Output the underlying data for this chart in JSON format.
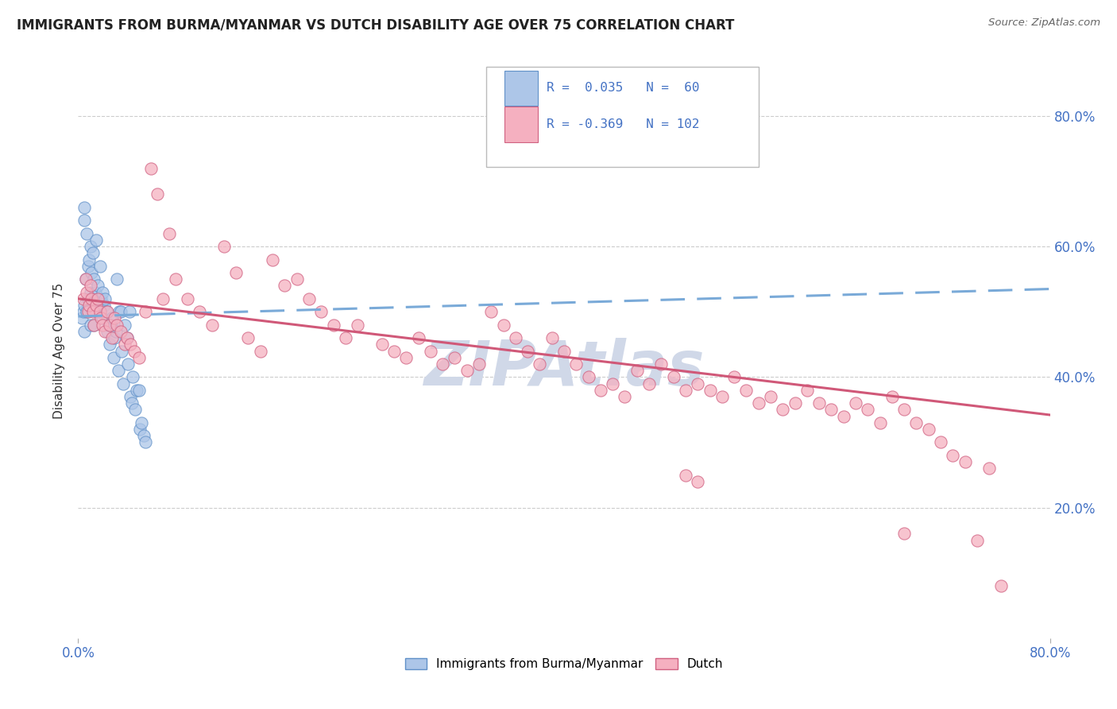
{
  "title": "IMMIGRANTS FROM BURMA/MYANMAR VS DUTCH DISABILITY AGE OVER 75 CORRELATION CHART",
  "source_text": "Source: ZipAtlas.com",
  "ylabel": "Disability Age Over 75",
  "legend_label_blue": "Immigrants from Burma/Myanmar",
  "legend_label_pink": "Dutch",
  "color_blue": "#adc6e8",
  "color_pink": "#f5b0c0",
  "color_blue_edge": "#6090c8",
  "color_pink_edge": "#d06080",
  "trend_blue_color": "#7aaad8",
  "trend_pink_color": "#d05878",
  "watermark": "ZIPAtlas",
  "watermark_color": "#d0d8e8",
  "xlim": [
    0.0,
    0.8
  ],
  "ylim": [
    0.0,
    0.88
  ],
  "yticks": [
    0.2,
    0.4,
    0.6,
    0.8
  ],
  "xticks": [
    0.0,
    0.8
  ],
  "blue_trend_x0": 0.0,
  "blue_trend_y0": 0.493,
  "blue_trend_x1": 0.8,
  "blue_trend_y1": 0.535,
  "pink_trend_x0": 0.0,
  "pink_trend_y0": 0.52,
  "pink_trend_x1": 0.8,
  "pink_trend_y1": 0.342,
  "blue_scatter_x": [
    0.003,
    0.004,
    0.005,
    0.005,
    0.005,
    0.005,
    0.006,
    0.007,
    0.007,
    0.008,
    0.008,
    0.009,
    0.01,
    0.01,
    0.01,
    0.011,
    0.012,
    0.012,
    0.013,
    0.013,
    0.014,
    0.015,
    0.015,
    0.016,
    0.017,
    0.018,
    0.019,
    0.02,
    0.02,
    0.021,
    0.022,
    0.023,
    0.024,
    0.025,
    0.026,
    0.027,
    0.028,
    0.029,
    0.03,
    0.031,
    0.032,
    0.033,
    0.034,
    0.035,
    0.036,
    0.037,
    0.038,
    0.04,
    0.041,
    0.042,
    0.043,
    0.044,
    0.045,
    0.047,
    0.048,
    0.05,
    0.051,
    0.052,
    0.054,
    0.055
  ],
  "blue_scatter_y": [
    0.49,
    0.5,
    0.64,
    0.66,
    0.51,
    0.47,
    0.55,
    0.62,
    0.5,
    0.57,
    0.52,
    0.58,
    0.6,
    0.53,
    0.48,
    0.56,
    0.59,
    0.52,
    0.55,
    0.48,
    0.53,
    0.61,
    0.5,
    0.54,
    0.51,
    0.57,
    0.52,
    0.53,
    0.49,
    0.51,
    0.52,
    0.5,
    0.47,
    0.48,
    0.45,
    0.48,
    0.49,
    0.43,
    0.46,
    0.47,
    0.55,
    0.41,
    0.5,
    0.5,
    0.44,
    0.39,
    0.48,
    0.46,
    0.42,
    0.5,
    0.37,
    0.36,
    0.4,
    0.35,
    0.38,
    0.38,
    0.32,
    0.33,
    0.31,
    0.3
  ],
  "pink_scatter_x": [
    0.004,
    0.006,
    0.007,
    0.008,
    0.009,
    0.01,
    0.011,
    0.012,
    0.013,
    0.015,
    0.016,
    0.018,
    0.019,
    0.02,
    0.022,
    0.024,
    0.026,
    0.028,
    0.03,
    0.032,
    0.035,
    0.038,
    0.04,
    0.043,
    0.046,
    0.05,
    0.055,
    0.06,
    0.065,
    0.07,
    0.075,
    0.08,
    0.09,
    0.1,
    0.11,
    0.12,
    0.13,
    0.14,
    0.15,
    0.16,
    0.17,
    0.18,
    0.19,
    0.2,
    0.21,
    0.22,
    0.23,
    0.25,
    0.26,
    0.27,
    0.28,
    0.29,
    0.3,
    0.31,
    0.32,
    0.33,
    0.34,
    0.35,
    0.36,
    0.37,
    0.38,
    0.39,
    0.4,
    0.41,
    0.42,
    0.43,
    0.44,
    0.45,
    0.46,
    0.47,
    0.48,
    0.49,
    0.5,
    0.51,
    0.52,
    0.53,
    0.54,
    0.55,
    0.56,
    0.57,
    0.58,
    0.59,
    0.6,
    0.61,
    0.62,
    0.63,
    0.64,
    0.65,
    0.66,
    0.67,
    0.68,
    0.69,
    0.7,
    0.71,
    0.72,
    0.73,
    0.74,
    0.75,
    0.76,
    0.5,
    0.51,
    0.68
  ],
  "pink_scatter_y": [
    0.52,
    0.55,
    0.53,
    0.5,
    0.51,
    0.54,
    0.52,
    0.5,
    0.48,
    0.51,
    0.52,
    0.5,
    0.49,
    0.48,
    0.47,
    0.5,
    0.48,
    0.46,
    0.49,
    0.48,
    0.47,
    0.45,
    0.46,
    0.45,
    0.44,
    0.43,
    0.5,
    0.72,
    0.68,
    0.52,
    0.62,
    0.55,
    0.52,
    0.5,
    0.48,
    0.6,
    0.56,
    0.46,
    0.44,
    0.58,
    0.54,
    0.55,
    0.52,
    0.5,
    0.48,
    0.46,
    0.48,
    0.45,
    0.44,
    0.43,
    0.46,
    0.44,
    0.42,
    0.43,
    0.41,
    0.42,
    0.5,
    0.48,
    0.46,
    0.44,
    0.42,
    0.46,
    0.44,
    0.42,
    0.4,
    0.38,
    0.39,
    0.37,
    0.41,
    0.39,
    0.42,
    0.4,
    0.38,
    0.39,
    0.38,
    0.37,
    0.4,
    0.38,
    0.36,
    0.37,
    0.35,
    0.36,
    0.38,
    0.36,
    0.35,
    0.34,
    0.36,
    0.35,
    0.33,
    0.37,
    0.35,
    0.33,
    0.32,
    0.3,
    0.28,
    0.27,
    0.15,
    0.26,
    0.08,
    0.25,
    0.24,
    0.16
  ]
}
